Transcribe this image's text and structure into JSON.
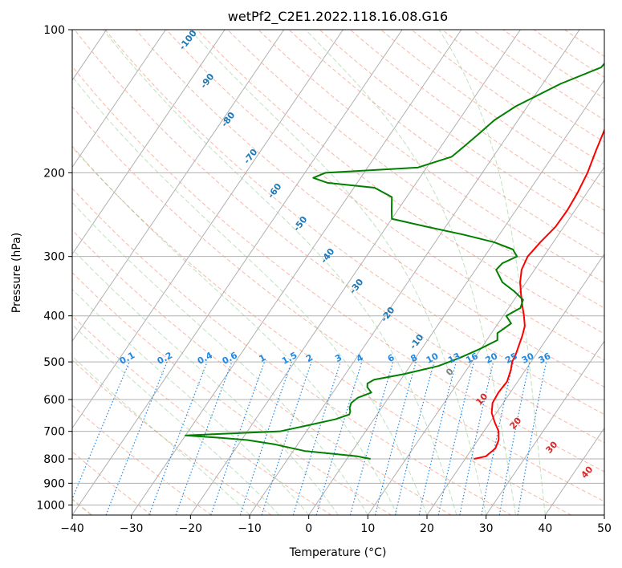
{
  "chart_data": {
    "type": "line",
    "title": "wetPf2_C2E1.2022.118.16.08.G16",
    "xlabel": "Temperature (°C)",
    "ylabel": "Pressure (hPa)",
    "xlim": [
      -40,
      50
    ],
    "ylim": [
      1050,
      100
    ],
    "y_scale": "log",
    "grid": true,
    "x_ticks": [
      "−40",
      "−30",
      "−20",
      "−10",
      "0",
      "10",
      "20",
      "30",
      "40",
      "50"
    ],
    "y_ticks": [
      "100",
      "200",
      "300",
      "400",
      "500",
      "600",
      "700",
      "800",
      "900",
      "1000"
    ],
    "x_tick_values": [
      -40,
      -30,
      -20,
      -10,
      0,
      10,
      20,
      30,
      40,
      50
    ],
    "y_tick_values": [
      100,
      200,
      300,
      400,
      500,
      600,
      700,
      800,
      900,
      1000
    ],
    "colors": {
      "temperature": "#ff0000",
      "dewpoint": "#008000",
      "isotherm_label": "#1f77b4",
      "mixing_ratio": "#1e88e5",
      "dry_adiabat": "#f08060",
      "moist_adiabat": "#2ca02c",
      "labeled_adiabat_labels": "#d62728",
      "grid": "#b0b0b0"
    },
    "isotherm_labels": [
      "-100",
      "-90",
      "-80",
      "-70",
      "-60",
      "-50",
      "-40",
      "-30",
      "-20",
      "-10",
      "0",
      "10",
      "20",
      "30",
      "40"
    ],
    "mixing_ratio_labels": [
      "0.1",
      "0.2",
      "0.4",
      "0.6",
      "1",
      "1.5",
      "2",
      "3",
      "4",
      "6",
      "8",
      "10",
      "13",
      "16",
      "20",
      "25",
      "30",
      "36"
    ],
    "mixing_ratio_values": [
      0.1,
      0.2,
      0.4,
      0.6,
      1,
      1.5,
      2,
      3,
      4,
      6,
      8,
      10,
      13,
      16,
      20,
      25,
      30,
      36
    ],
    "series": [
      {
        "id": "temperature",
        "p": [
          800,
          790,
          760,
          730,
          700,
          670,
          640,
          610,
          580,
          550,
          520,
          500,
          480,
          460,
          440,
          420,
          400,
          380,
          360,
          340,
          320,
          300,
          280,
          260,
          240,
          220,
          200,
          180,
          160,
          145,
          130,
          120,
          112,
          106,
          100
        ],
        "t": [
          21.5,
          23.2,
          23.9,
          23.5,
          22.5,
          20.8,
          19.2,
          18.2,
          18.0,
          18.2,
          17.5,
          16.8,
          16.5,
          16.0,
          15.5,
          14.8,
          13.5,
          12.0,
          10.5,
          9.0,
          7.8,
          7.3,
          7.8,
          8.6,
          8.7,
          8.4,
          7.8,
          6.7,
          5.6,
          5.2,
          5.0,
          4.3,
          4.4,
          5.1,
          6.3
        ]
      },
      {
        "id": "dewpoint",
        "p": [
          800,
          790,
          770,
          745,
          730,
          722,
          714,
          700,
          680,
          660,
          645,
          635,
          625,
          610,
          595,
          580,
          565,
          555,
          545,
          530,
          510,
          490,
          470,
          450,
          435,
          415,
          400,
          385,
          370,
          355,
          340,
          320,
          310,
          300,
          290,
          280,
          270,
          260,
          250,
          240,
          225,
          215,
          210,
          205,
          200,
          195,
          185,
          175,
          165,
          155,
          145,
          130,
          120,
          110,
          100
        ],
        "t": [
          4.0,
          1.5,
          -8.0,
          -14.0,
          -19.0,
          -24.0,
          -30.0,
          -14.5,
          -10.5,
          -6.5,
          -4.7,
          -4.9,
          -5.4,
          -5.7,
          -5.2,
          -3.5,
          -4.8,
          -5.2,
          -4.5,
          0.0,
          4.8,
          7.5,
          9.8,
          11.8,
          11.0,
          12.2,
          10.5,
          12.0,
          11.5,
          9.0,
          6.0,
          3.5,
          3.8,
          5.5,
          4.0,
          0.0,
          -6.0,
          -13.0,
          -20.0,
          -21.0,
          -22.5,
          -26.5,
          -35.0,
          -38.0,
          -36.5,
          -21.5,
          -17.0,
          -16.0,
          -15.0,
          -14.0,
          -12.0,
          -7.0,
          -2.0,
          -1.5,
          0.5
        ]
      }
    ]
  }
}
